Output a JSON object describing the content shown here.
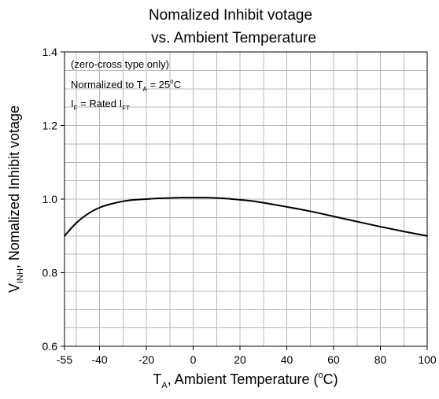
{
  "chart_data": {
    "type": "line",
    "title": [
      "Nomalized Inhibit votage",
      "vs. Ambient Temperature"
    ],
    "xlabel": {
      "main": "T",
      "sub": "A",
      "rest": ", Ambient Temperature (",
      "sup": "o",
      "end": "C)"
    },
    "ylabel": {
      "main": "V",
      "sub": "INH",
      "rest": ", Nomalized Inhibit votage"
    },
    "xlim": [
      -55,
      100
    ],
    "ylim": [
      0.6,
      1.4
    ],
    "x_ticks": [
      -55,
      -40,
      -20,
      0,
      20,
      40,
      60,
      80,
      100
    ],
    "x_tick_labels": [
      "-55",
      "-40",
      "-20",
      "0",
      "20",
      "40",
      "60",
      "80",
      "100"
    ],
    "y_ticks": [
      0.6,
      0.8,
      1.0,
      1.2,
      1.4
    ],
    "y_tick_labels": [
      "0.6",
      "0.8",
      "1.0",
      "1.2",
      "1.4"
    ],
    "x_grid": [
      -50,
      -40,
      -30,
      -20,
      -10,
      0,
      10,
      20,
      30,
      40,
      50,
      60,
      70,
      80,
      90
    ],
    "y_grid": [
      0.65,
      0.7,
      0.75,
      0.8,
      0.85,
      0.9,
      0.95,
      1.0,
      1.05,
      1.1,
      1.15,
      1.2,
      1.25,
      1.3,
      1.35
    ],
    "grid": true,
    "annotations": {
      "line1": "(zero-cross type only)",
      "line2": {
        "a": "Normalized to T",
        "sub": "A",
        "b": " = 25",
        "sup": "o",
        "c": "C"
      },
      "line3": {
        "a": "I",
        "sub": "F",
        "b": " = Rated I",
        "sub2": "FT"
      }
    },
    "series": [
      {
        "x": [
          -55,
          -50,
          -45,
          -40,
          -35,
          -30,
          -25,
          -20,
          -15,
          -10,
          -5,
          0,
          5,
          10,
          15,
          20,
          25,
          30,
          40,
          50,
          60,
          70,
          80,
          90,
          100
        ],
        "y": [
          0.9,
          0.935,
          0.96,
          0.977,
          0.987,
          0.994,
          0.998,
          1.0,
          1.002,
          1.003,
          1.004,
          1.004,
          1.004,
          1.003,
          1.001,
          0.998,
          0.995,
          0.99,
          0.979,
          0.967,
          0.953,
          0.939,
          0.925,
          0.912,
          0.9
        ]
      }
    ]
  }
}
